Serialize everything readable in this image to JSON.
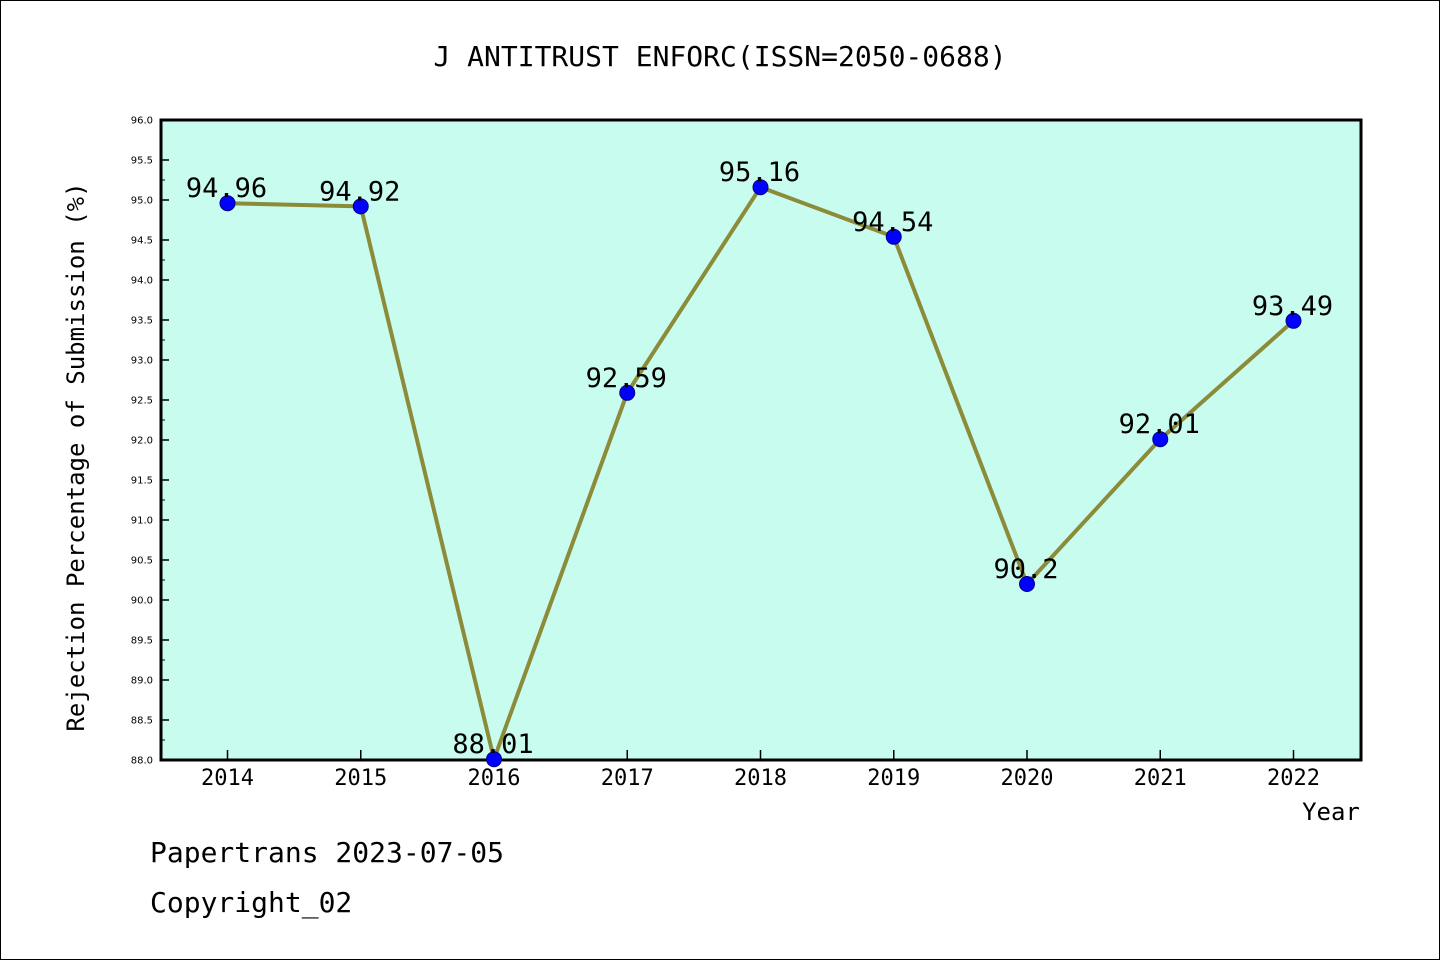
{
  "chart_data": {
    "type": "line",
    "title": "J ANTITRUST ENFORC(ISSN=2050-0688)",
    "xlabel": "Year",
    "ylabel": "Rejection Percentage of Submission (%)",
    "categories": [
      "2014",
      "2015",
      "2016",
      "2017",
      "2018",
      "2019",
      "2020",
      "2021",
      "2022"
    ],
    "values": [
      94.96,
      94.92,
      88.01,
      92.59,
      95.16,
      94.54,
      90.2,
      92.01,
      93.49
    ],
    "data_labels": [
      "94.96",
      "94.92",
      "88.01",
      "92.59",
      "95.16",
      "94.54",
      "90.2",
      "92.01",
      "93.49"
    ],
    "ylim": [
      88.0,
      96.0
    ],
    "yticks": [
      "88.0",
      "88.5",
      "89.0",
      "89.5",
      "90.0",
      "90.5",
      "91.0",
      "91.5",
      "92.0",
      "92.5",
      "93.0",
      "93.5",
      "94.0",
      "94.5",
      "95.0",
      "95.5",
      "96.0"
    ],
    "grid": false,
    "colors": {
      "plot_background": "#c8fcee",
      "line": "#8b8b3a",
      "marker": "#0000ff"
    }
  },
  "footer": {
    "line1": "Papertrans 2023-07-05",
    "line2": "Copyright_02"
  }
}
